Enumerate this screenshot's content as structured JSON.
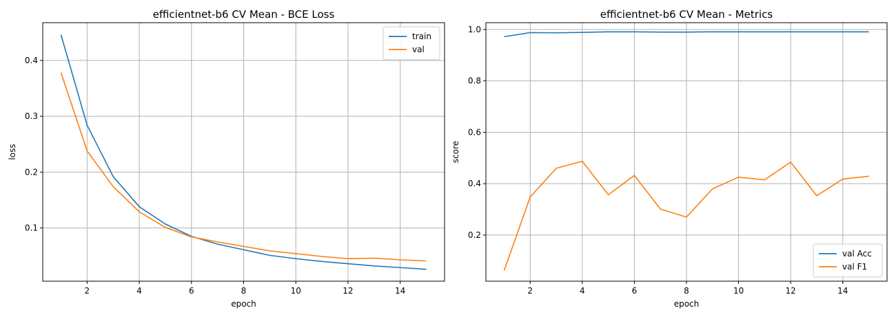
{
  "chart_data": [
    {
      "type": "line",
      "title": "efficientnet-b6 CV Mean - BCE Loss",
      "xlabel": "epoch",
      "ylabel": "loss",
      "xlim": [
        0.3,
        15.7
      ],
      "ylim": [
        0.0047,
        0.4675
      ],
      "xticks": [
        2,
        4,
        6,
        8,
        10,
        12,
        14
      ],
      "yticks": [
        0.1,
        0.2,
        0.3,
        0.4
      ],
      "grid": true,
      "legend_position": "upper right",
      "x": [
        1,
        2,
        3,
        4,
        5,
        6,
        7,
        8,
        9,
        10,
        11,
        12,
        13,
        14,
        15
      ],
      "series": [
        {
          "name": "train",
          "color": "#1f77b4",
          "values": [
            0.446,
            0.284,
            0.192,
            0.138,
            0.107,
            0.085,
            0.071,
            0.061,
            0.051,
            0.045,
            0.04,
            0.036,
            0.032,
            0.029,
            0.026
          ]
        },
        {
          "name": "val",
          "color": "#ff7f0e",
          "values": [
            0.378,
            0.238,
            0.174,
            0.129,
            0.101,
            0.084,
            0.075,
            0.067,
            0.059,
            0.054,
            0.049,
            0.045,
            0.046,
            0.043,
            0.041
          ]
        }
      ]
    },
    {
      "type": "line",
      "title": "efficientnet-b6 CV Mean - Metrics",
      "xlabel": "epoch",
      "ylabel": "score",
      "xlim": [
        0.3,
        15.7
      ],
      "ylim": [
        0.0205,
        1.0265
      ],
      "xticks": [
        2,
        4,
        6,
        8,
        10,
        12,
        14
      ],
      "yticks": [
        0.2,
        0.4,
        0.6,
        0.8,
        1.0
      ],
      "grid": true,
      "legend_position": "lower right",
      "x": [
        1,
        2,
        3,
        4,
        5,
        6,
        7,
        8,
        9,
        10,
        11,
        12,
        13,
        14,
        15
      ],
      "series": [
        {
          "name": "val Acc",
          "color": "#1f77b4",
          "values": [
            0.972,
            0.988,
            0.987,
            0.989,
            0.991,
            0.991,
            0.99,
            0.99,
            0.991,
            0.991,
            0.991,
            0.991,
            0.991,
            0.991,
            0.991
          ]
        },
        {
          "name": "val F1",
          "color": "#ff7f0e",
          "values": [
            0.062,
            0.348,
            0.46,
            0.487,
            0.357,
            0.432,
            0.301,
            0.27,
            0.38,
            0.425,
            0.415,
            0.484,
            0.353,
            0.418,
            0.429
          ]
        }
      ]
    }
  ]
}
